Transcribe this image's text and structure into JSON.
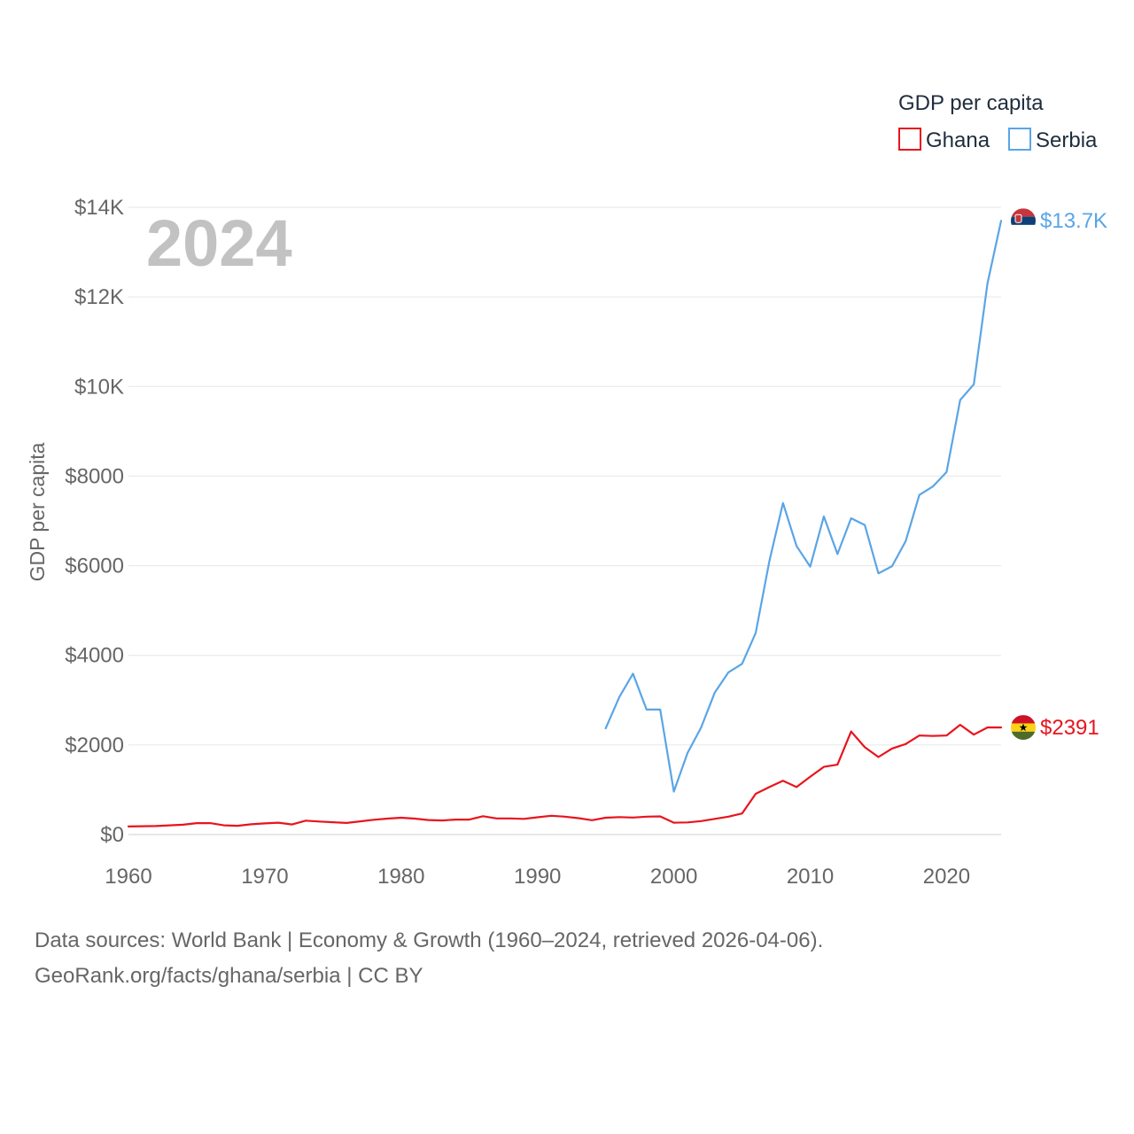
{
  "chart_data": {
    "type": "line",
    "title": "",
    "year_label": "2024",
    "xlabel": "",
    "ylabel": "GDP per capita",
    "xlim": [
      1960,
      2024
    ],
    "ylim": [
      0,
      14000
    ],
    "x_ticks": [
      1960,
      1970,
      1980,
      1990,
      2000,
      2010,
      2020
    ],
    "x_tick_labels": [
      "1960",
      "1970",
      "1980",
      "1990",
      "2000",
      "2010",
      "2020"
    ],
    "y_ticks": [
      0,
      2000,
      4000,
      6000,
      8000,
      10000,
      12000,
      14000
    ],
    "y_tick_labels": [
      "$0",
      "$2000",
      "$4000",
      "$6000",
      "$8000",
      "$10K",
      "$12K",
      "$14K"
    ],
    "grid": true,
    "legend": {
      "title": "GDP per capita",
      "position": "top-right"
    },
    "series": [
      {
        "name": "Ghana",
        "color": "#e8141c",
        "end_label": "$2391",
        "flag_icon": "ghana-flag-icon",
        "x": [
          1960,
          1961,
          1962,
          1963,
          1964,
          1965,
          1966,
          1967,
          1968,
          1969,
          1970,
          1971,
          1972,
          1973,
          1974,
          1975,
          1976,
          1977,
          1978,
          1979,
          1980,
          1981,
          1982,
          1983,
          1984,
          1985,
          1986,
          1987,
          1988,
          1989,
          1990,
          1991,
          1992,
          1993,
          1994,
          1995,
          1996,
          1997,
          1998,
          1999,
          2000,
          2001,
          2002,
          2003,
          2004,
          2005,
          2006,
          2007,
          2008,
          2009,
          2010,
          2011,
          2012,
          2013,
          2014,
          2015,
          2016,
          2017,
          2018,
          2019,
          2020,
          2021,
          2022,
          2023,
          2024
        ],
        "values": [
          180,
          185,
          190,
          205,
          220,
          255,
          255,
          205,
          195,
          230,
          250,
          265,
          225,
          310,
          290,
          275,
          260,
          295,
          330,
          355,
          375,
          355,
          325,
          315,
          335,
          335,
          410,
          360,
          360,
          350,
          385,
          420,
          400,
          365,
          320,
          375,
          390,
          380,
          400,
          405,
          265,
          270,
          300,
          350,
          400,
          470,
          910,
          1060,
          1200,
          1060,
          1290,
          1510,
          1560,
          2300,
          1950,
          1730,
          1920,
          2020,
          2210,
          2200,
          2210,
          2450,
          2230,
          2390,
          2391
        ]
      },
      {
        "name": "Serbia",
        "color": "#5aa5e6",
        "end_label": "$13.7K",
        "flag_icon": "serbia-flag-icon",
        "x": [
          1995,
          1996,
          1997,
          1998,
          1999,
          2000,
          2001,
          2002,
          2003,
          2004,
          2005,
          2006,
          2007,
          2008,
          2009,
          2010,
          2011,
          2012,
          2013,
          2014,
          2015,
          2016,
          2017,
          2018,
          2019,
          2020,
          2021,
          2022,
          2023,
          2024
        ],
        "values": [
          2370,
          3070,
          3590,
          2790,
          2790,
          960,
          1820,
          2390,
          3170,
          3620,
          3810,
          4500,
          6100,
          7400,
          6440,
          5980,
          7100,
          6260,
          7060,
          6910,
          5830,
          5990,
          6550,
          7580,
          7770,
          8090,
          9700,
          10050,
          12300,
          13700
        ]
      }
    ]
  },
  "footer": {
    "line1": "Data sources: World Bank | Economy & Growth (1960–2024, retrieved 2026-04-06).",
    "line2": "GeoRank.org/facts/ghana/serbia | CC BY"
  }
}
